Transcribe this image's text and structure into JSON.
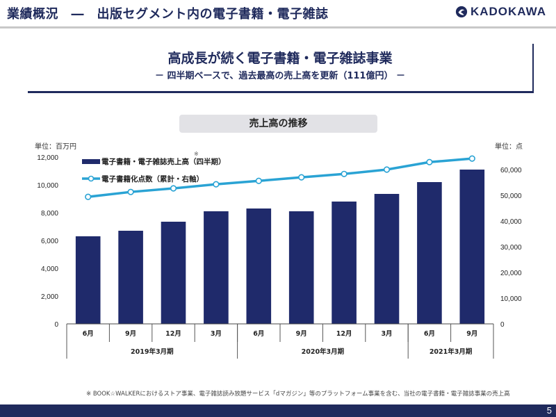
{
  "header": {
    "title": "業績概況　―　出版セグメント内の電子書籍・電子雑誌",
    "logo_text": "KADOKAWA",
    "logo_icon": "phoenix-emblem-icon"
  },
  "headline": {
    "title": "高成長が続く電子書籍・電子雑誌事業",
    "subtitle": "－ 四半期ベースで、過去最高の売上高を更新（111億円） －"
  },
  "section_label": "売上高の推移",
  "units": {
    "left": "単位：百万円",
    "right": "単位：点"
  },
  "colors": {
    "brand_navy": "#1f2a5c",
    "bar": "#1f2a6b",
    "line": "#2aa3d4",
    "pill_bg": "#e2e2e6"
  },
  "chart_data": {
    "type": "bar+line",
    "title": "売上高の推移",
    "categories": [
      "6月",
      "9月",
      "12月",
      "3月",
      "6月",
      "9月",
      "12月",
      "3月",
      "6月",
      "9月"
    ],
    "fiscal_groups": [
      {
        "label": "2019年3月期",
        "count": 4
      },
      {
        "label": "2020年3月期",
        "count": 4
      },
      {
        "label": "2021年3月期",
        "count": 2
      }
    ],
    "series": [
      {
        "name": "電子書籍・電子雑誌売上高（四半期）",
        "footnote_mark": "※",
        "type": "bar",
        "axis": "left",
        "values": [
          6300,
          6700,
          7350,
          8100,
          8300,
          8100,
          8800,
          9350,
          10200,
          11100
        ]
      },
      {
        "name": "電子書籍化点数（累計・右軸）",
        "type": "line",
        "axis": "right",
        "values": [
          49400,
          51300,
          52700,
          54300,
          55600,
          57000,
          58300,
          60000,
          62900,
          64300
        ]
      }
    ],
    "y_left": {
      "min": 0,
      "max": 12000,
      "ticks": [
        "0",
        "2,000",
        "4,000",
        "6,000",
        "8,000",
        "10,000",
        "12,000"
      ],
      "label": "単位：百万円"
    },
    "y_right": {
      "min": 0,
      "max": 60000,
      "ticks": [
        "0",
        "10,000",
        "20,000",
        "30,000",
        "40,000",
        "50,000",
        "60,000"
      ],
      "label": "単位：点"
    },
    "legend": "top-left",
    "grid": false
  },
  "footnote": "※ BOOK☆WALKERにおけるストア事業、電子雑誌読み放題サービス「dマガジン」等のプラットフォーム事業を含む、当社の電子書籍・電子雑誌事業の売上高",
  "page_number": "5"
}
